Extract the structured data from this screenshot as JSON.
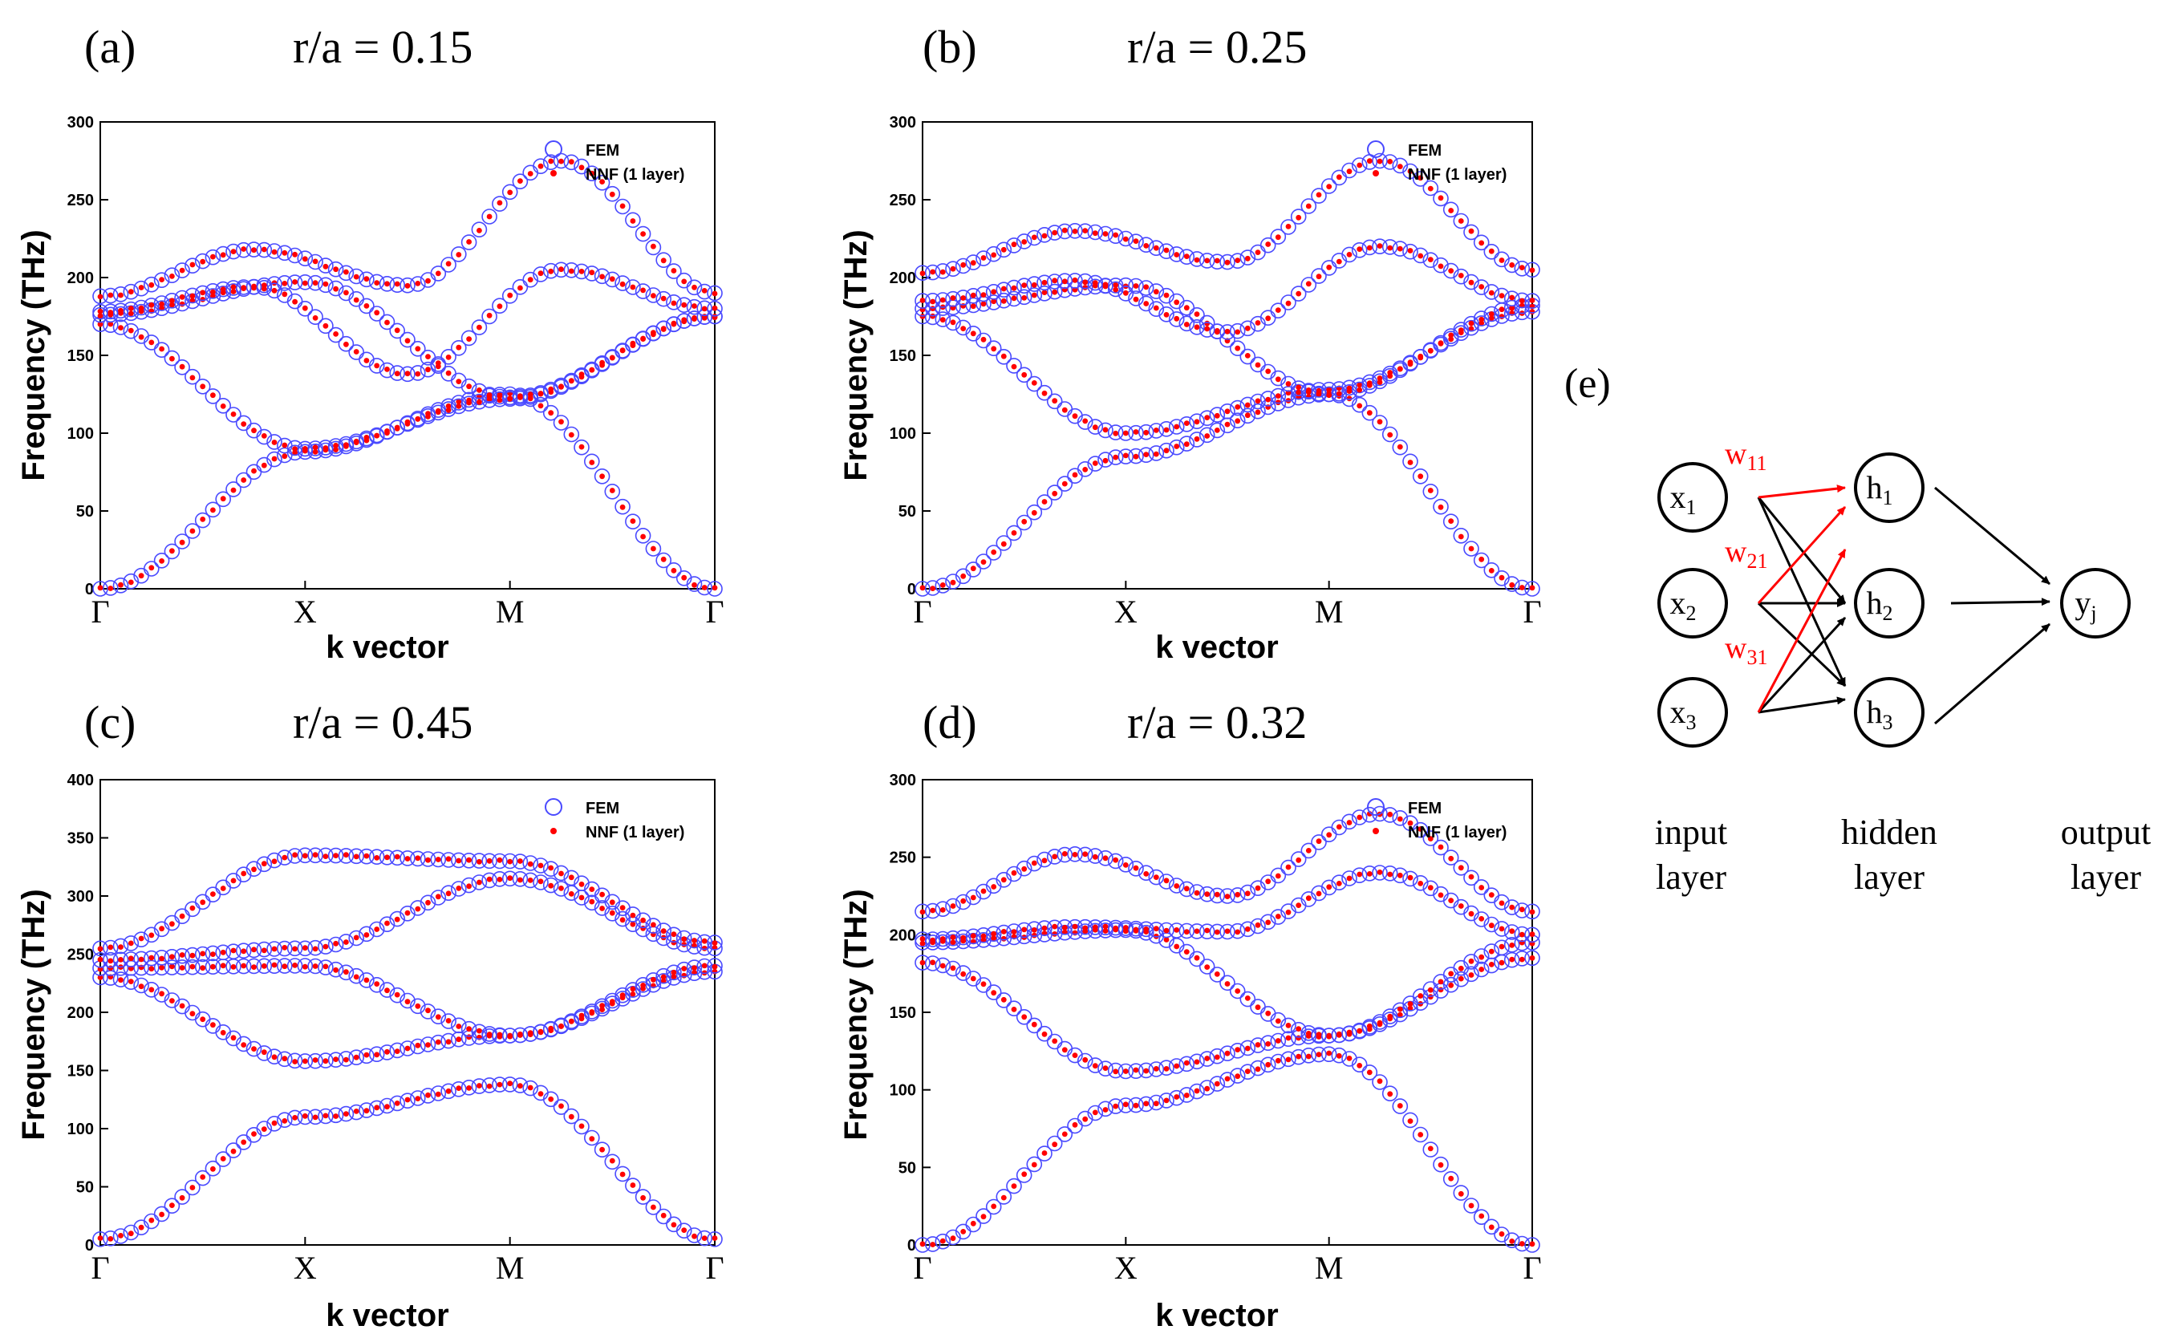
{
  "style": {
    "fem_color": "#4a4aff",
    "nnf_color": "#ff0000",
    "axis_color": "#000000",
    "net_black": "#000000",
    "net_red": "#ff0000"
  },
  "chart_data": [
    {
      "type": "scatter",
      "panel_label": "(a)",
      "title": "r/a = 0.15",
      "xlabel": "k vector",
      "ylabel": "Frequency (THz)",
      "x_ticks": [
        "Γ",
        "X",
        "M",
        "Γ"
      ],
      "ylim": [
        0,
        300
      ],
      "y_ticks": [
        0,
        50,
        100,
        150,
        200,
        250,
        300
      ],
      "legend": {
        "position": "top-right",
        "entries": [
          "FEM",
          "NNF (1 layer)"
        ]
      },
      "bands": [
        [
          0,
          88,
          125,
          0
        ],
        [
          170,
          90,
          122,
          175
        ],
        [
          176,
          197,
          123,
          175
        ],
        [
          178,
          194,
          138,
          205,
          180
        ],
        [
          188,
          218,
          195,
          275,
          190
        ]
      ],
      "series": [
        {
          "name": "FEM",
          "marker": "open-circle"
        },
        {
          "name": "NNF (1 layer)",
          "marker": "filled-dot"
        }
      ]
    },
    {
      "type": "scatter",
      "panel_label": "(b)",
      "title": "r/a = 0.25",
      "xlabel": "k vector",
      "ylabel": "Frequency (THz)",
      "x_ticks": [
        "Γ",
        "X",
        "M",
        "Γ"
      ],
      "ylim": [
        0,
        300
      ],
      "y_ticks": [
        0,
        50,
        100,
        150,
        200,
        250,
        300
      ],
      "legend": {
        "position": "top-right",
        "entries": [
          "FEM",
          "NNF (1 layer)"
        ]
      },
      "bands": [
        [
          0,
          85,
          125,
          0
        ],
        [
          175,
          100,
          128,
          178
        ],
        [
          180,
          195,
          125,
          182
        ],
        [
          185,
          198,
          165,
          220,
          185
        ],
        [
          203,
          230,
          210,
          275,
          205
        ]
      ],
      "series": [
        {
          "name": "FEM",
          "marker": "open-circle"
        },
        {
          "name": "NNF (1 layer)",
          "marker": "filled-dot"
        }
      ]
    },
    {
      "type": "scatter",
      "panel_label": "(c)",
      "title": "r/a = 0.45",
      "xlabel": "k vector",
      "ylabel": "Frequency (THz)",
      "x_ticks": [
        "Γ",
        "X",
        "M",
        "Γ"
      ],
      "ylim": [
        0,
        400
      ],
      "y_ticks": [
        0,
        50,
        100,
        150,
        200,
        250,
        300,
        350,
        400
      ],
      "legend": {
        "position": "top-right",
        "entries": [
          "FEM",
          "NNF (1 layer)"
        ]
      },
      "bands": [
        [
          5,
          110,
          138,
          5
        ],
        [
          230,
          158,
          180,
          235
        ],
        [
          238,
          240,
          180,
          240
        ],
        [
          245,
          255,
          315,
          255
        ],
        [
          255,
          335,
          330,
          260
        ]
      ],
      "series": [
        {
          "name": "FEM",
          "marker": "open-circle"
        },
        {
          "name": "NNF (1 layer)",
          "marker": "filled-dot"
        }
      ]
    },
    {
      "type": "scatter",
      "panel_label": "(d)",
      "title": "r/a = 0.32",
      "xlabel": "k vector",
      "ylabel": "Frequency (THz)",
      "x_ticks": [
        "Γ",
        "X",
        "M",
        "Γ"
      ],
      "ylim": [
        0,
        300
      ],
      "y_ticks": [
        0,
        50,
        100,
        150,
        200,
        250,
        300
      ],
      "legend": {
        "position": "top-right",
        "entries": [
          "FEM",
          "NNF (1 layer)"
        ]
      },
      "bands": [
        [
          0,
          90,
          123,
          0
        ],
        [
          182,
          112,
          135,
          185
        ],
        [
          195,
          203,
          135,
          195
        ],
        [
          197,
          205,
          202,
          240,
          200
        ],
        [
          215,
          252,
          225,
          278,
          215
        ]
      ],
      "series": [
        {
          "name": "FEM",
          "marker": "open-circle"
        },
        {
          "name": "NNF (1 layer)",
          "marker": "filled-dot"
        }
      ]
    }
  ],
  "network": {
    "panel_label": "(e)",
    "input_nodes": [
      {
        "base": "x",
        "sub": "1"
      },
      {
        "base": "x",
        "sub": "2"
      },
      {
        "base": "x",
        "sub": "3"
      }
    ],
    "hidden_nodes": [
      {
        "base": "h",
        "sub": "1"
      },
      {
        "base": "h",
        "sub": "2"
      },
      {
        "base": "h",
        "sub": "3"
      }
    ],
    "output_nodes": [
      {
        "base": "y",
        "sub": "j"
      }
    ],
    "weight_labels": [
      {
        "base": "w",
        "sub": "11"
      },
      {
        "base": "w",
        "sub": "21"
      },
      {
        "base": "w",
        "sub": "31"
      }
    ],
    "layer_labels": {
      "input": [
        "input",
        "layer"
      ],
      "hidden": [
        "hidden",
        "layer"
      ],
      "output": [
        "output",
        "layer"
      ]
    }
  }
}
